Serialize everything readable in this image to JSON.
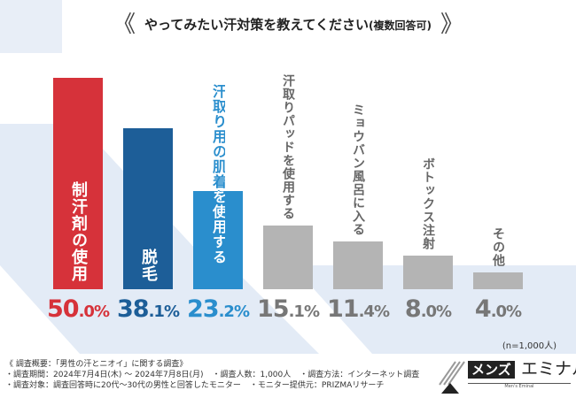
{
  "header": {
    "title": "やってみたい汗対策を教えてください",
    "subtitle": "(複数回答可)",
    "bracket_left": "《",
    "bracket_right": "》"
  },
  "chart_data": {
    "type": "bar",
    "title": "やってみたい汗対策を教えてください(複数回答可)",
    "categories": [
      "制汗剤の使用",
      "脱毛",
      "汗取り用の肌着を使用する",
      "汗取りパッドを使用する",
      "ミョウバン風呂に入る",
      "ボトックス注射",
      "その他"
    ],
    "values": [
      50.0,
      38.1,
      23.2,
      15.1,
      11.4,
      8.0,
      4.0
    ],
    "unit": "%",
    "colors": [
      "#d6323a",
      "#1d5e98",
      "#2a8ecd",
      "#b4b4b4",
      "#b4b4b4",
      "#b4b4b4",
      "#b4b4b4"
    ],
    "label_colors": [
      "#d6323a",
      "#1d5e98",
      "#2a8ecd",
      "#777777",
      "#777777",
      "#777777",
      "#777777"
    ],
    "ylim": [
      0,
      50
    ],
    "grid": false,
    "sample_note": "(n=1,000人)"
  },
  "notes": {
    "heading": "《 調査概要：「男性の汗とニオイ」に関する調査》",
    "period": "・調査期間：2024年7月4日(木) ～ 2024年7月8日(月)",
    "count": "・調査人数：1,000人",
    "method": "・調査方法：インターネット調査",
    "target": "・調査対象：調査回答時に20代～30代の男性と回答したモニター",
    "provider": "・モニター提供元：PRIZMAリサーチ"
  },
  "logo": {
    "text1": "メンズ",
    "text2": "エミナル",
    "tagline": "Men's Eminal"
  }
}
